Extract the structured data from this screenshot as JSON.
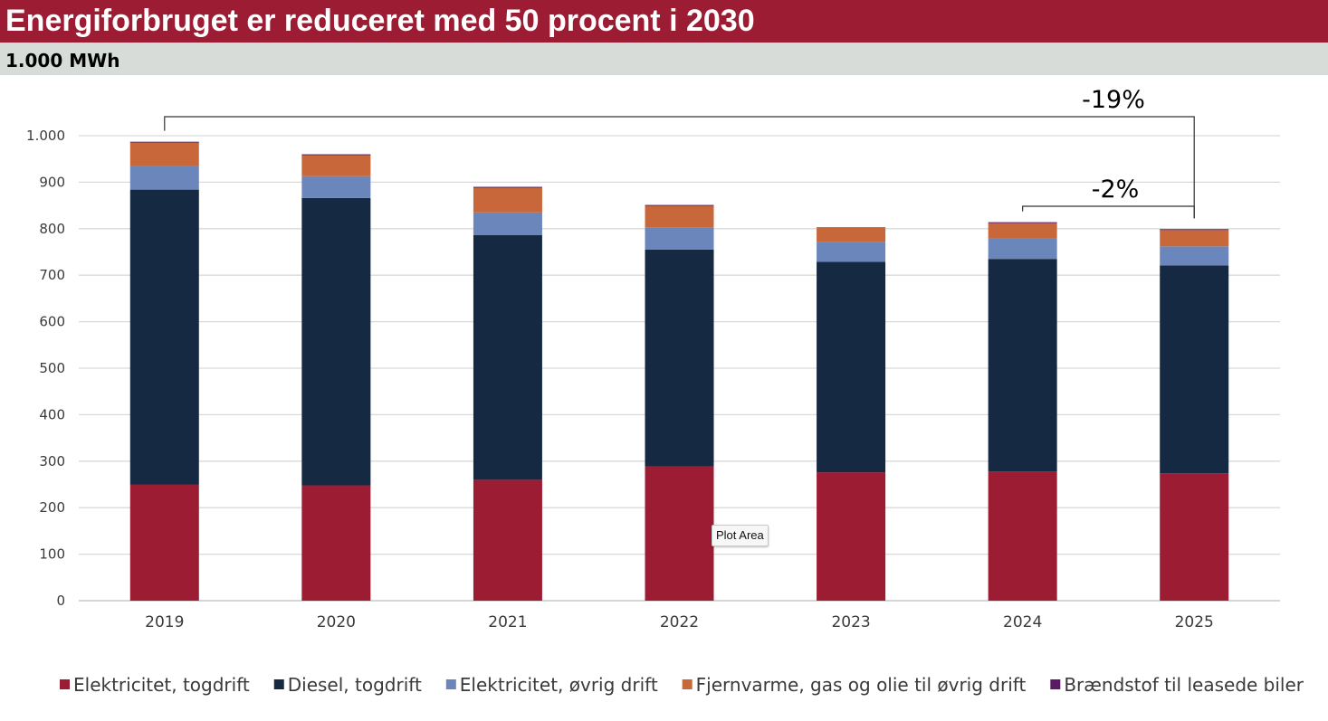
{
  "chart_data": {
    "type": "bar",
    "stacked": true,
    "title": "Energiforbruget er reduceret med 50 procent i 2030",
    "subtitle": "1.000 MWh",
    "categories": [
      "2019",
      "2020",
      "2021",
      "2022",
      "2023",
      "2024",
      "2025"
    ],
    "ylim": [
      0,
      1000
    ],
    "yticks": [
      0,
      100,
      200,
      300,
      400,
      500,
      600,
      700,
      800,
      900,
      1000
    ],
    "ytick_labels": [
      "0",
      "100",
      "200",
      "300",
      "400",
      "500",
      "600",
      "700",
      "800",
      "900",
      "1.000"
    ],
    "grid": true,
    "legend_position": "bottom",
    "series": [
      {
        "name": "Elektricitet, togdrift",
        "color": "#9b1c33",
        "values": [
          250,
          248,
          260,
          289,
          276,
          278,
          274
        ]
      },
      {
        "name": "Diesel, togdrift",
        "color": "#152a42",
        "values": [
          634,
          618,
          526,
          466,
          453,
          457,
          447
        ]
      },
      {
        "name": "Elektricitet, øvrig drift",
        "color": "#6a86bb",
        "values": [
          51,
          47,
          49,
          47,
          42,
          44,
          41
        ]
      },
      {
        "name": "Fjernvarme, gas og olie til øvrig drift",
        "color": "#c8683a",
        "values": [
          50,
          45,
          53,
          47,
          31,
          33,
          35
        ]
      },
      {
        "name": "Brændstof til leasede biler",
        "color": "#5b1a66",
        "values": [
          2,
          2,
          2,
          2,
          1,
          2,
          2
        ]
      }
    ],
    "annotations": [
      {
        "label": "-19%",
        "from": "2019",
        "to": "2025"
      },
      {
        "label": "-2%",
        "from": "2024",
        "to": "2025"
      }
    ]
  },
  "tooltip": {
    "text": "Plot Area"
  }
}
